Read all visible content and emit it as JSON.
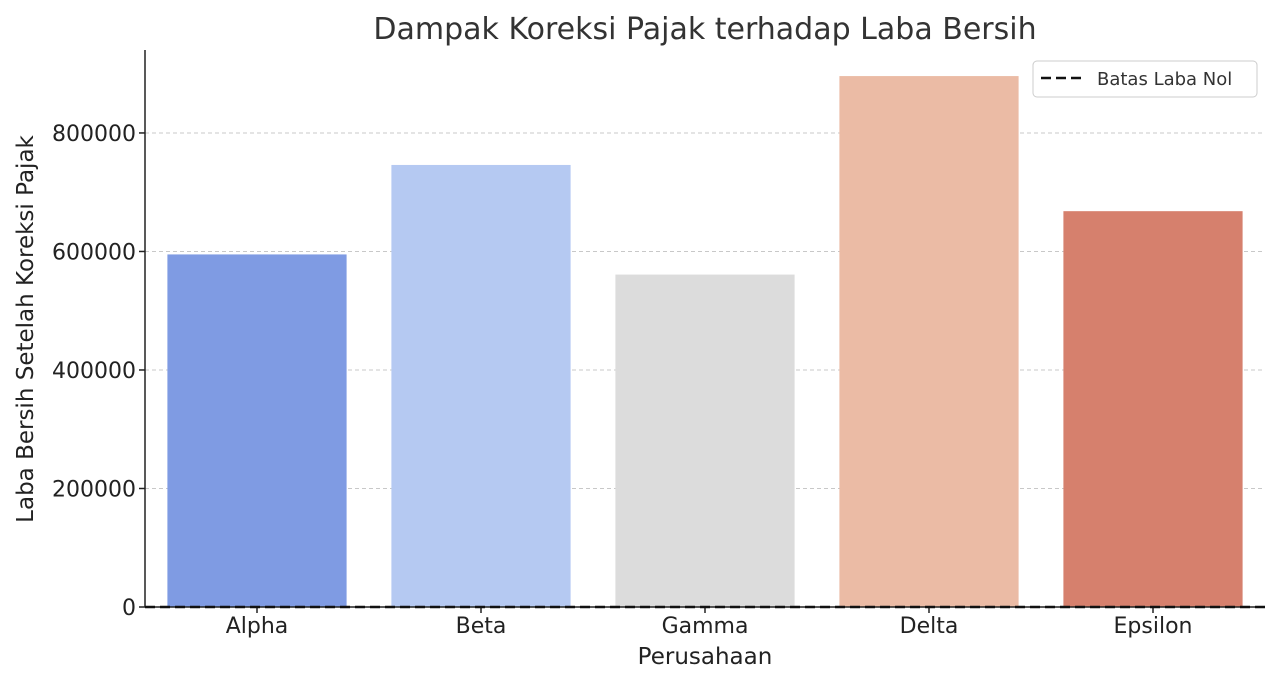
{
  "chart_data": {
    "type": "bar",
    "title": "Dampak Koreksi Pajak terhadap Laba Bersih",
    "xlabel": "Perusahaan",
    "ylabel": "Laba Bersih Setelah Koreksi Pajak",
    "categories": [
      "Alpha",
      "Beta",
      "Gamma",
      "Delta",
      "Epsilon"
    ],
    "values": [
      595000,
      746000,
      561000,
      896000,
      668000
    ],
    "colors": [
      "#7f9be3",
      "#b5c9f2",
      "#dcdcdc",
      "#ebbba5",
      "#d6806d"
    ],
    "ylim": [
      0,
      940000
    ],
    "yticks": [
      0,
      200000,
      400000,
      600000,
      800000
    ],
    "ytick_labels": [
      "0",
      "200000",
      "400000",
      "600000",
      "800000"
    ],
    "grid": true,
    "reference_line": {
      "y": 0,
      "label": "Batas Laba Nol",
      "style": "dashed",
      "color": "#111111"
    },
    "legend": {
      "position": "top-right",
      "entries": [
        "Batas Laba Nol"
      ]
    }
  }
}
